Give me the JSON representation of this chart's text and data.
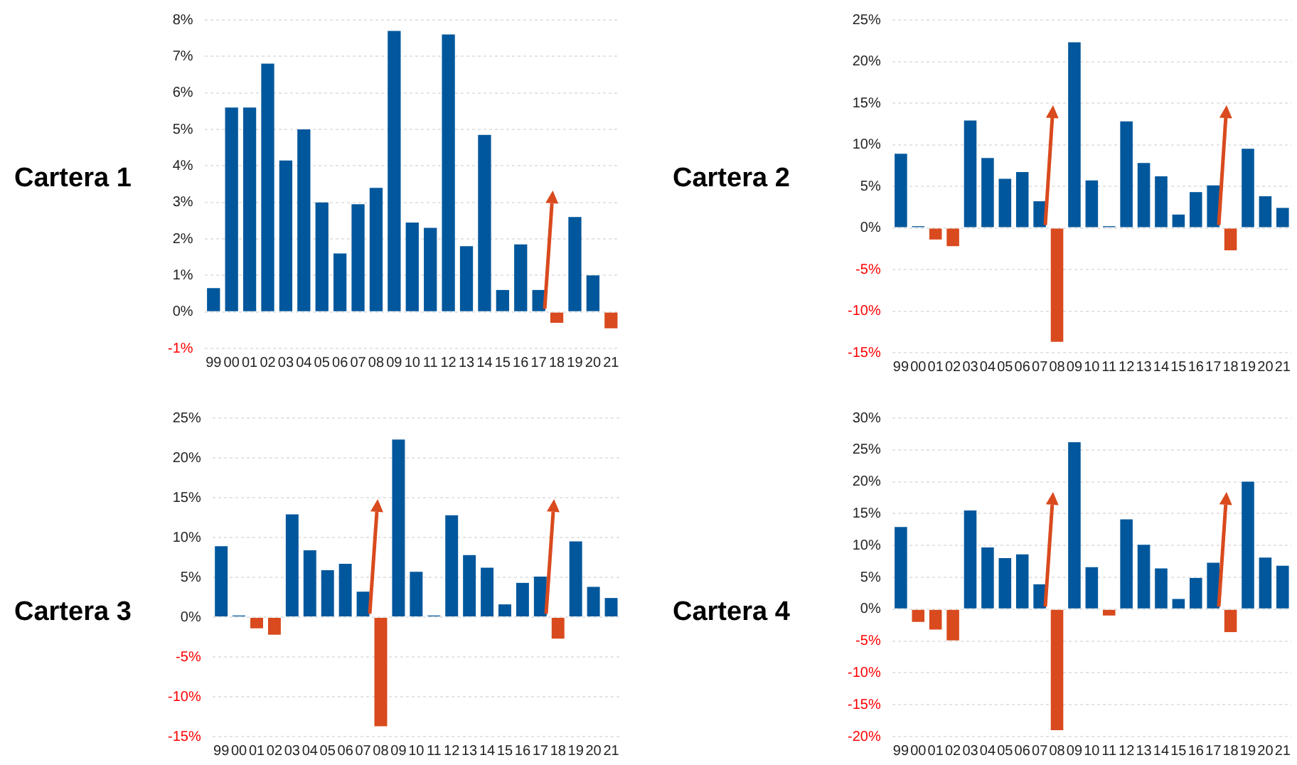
{
  "chart_data": [
    {
      "type": "bar",
      "title": "Cartera 1",
      "categories": [
        "99",
        "00",
        "01",
        "02",
        "03",
        "04",
        "05",
        "06",
        "07",
        "08",
        "09",
        "10",
        "11",
        "12",
        "13",
        "14",
        "15",
        "16",
        "17",
        "18",
        "19",
        "20",
        "21"
      ],
      "values": [
        0.65,
        5.6,
        5.6,
        6.8,
        4.15,
        5.0,
        3.0,
        1.6,
        2.95,
        3.4,
        7.7,
        2.45,
        2.3,
        7.6,
        1.8,
        4.85,
        0.6,
        1.85,
        0.6,
        -0.3,
        2.6,
        1.0,
        -0.45
      ],
      "colors": [
        "#00579c",
        "#00579c",
        "#00579c",
        "#00579c",
        "#00579c",
        "#00579c",
        "#00579c",
        "#00579c",
        "#00579c",
        "#00579c",
        "#00579c",
        "#00579c",
        "#00579c",
        "#00579c",
        "#00579c",
        "#00579c",
        "#00579c",
        "#00579c",
        "#00579c",
        "#d94a1e",
        "#00579c",
        "#00579c",
        "#d94a1e"
      ],
      "ylim": [
        -1,
        8
      ],
      "yticks": [
        {
          "value": -1,
          "label": "-1%"
        },
        {
          "value": 0,
          "label": "0%"
        },
        {
          "value": 1,
          "label": "1%"
        },
        {
          "value": 2,
          "label": "2%"
        },
        {
          "value": 3,
          "label": "3%"
        },
        {
          "value": 4,
          "label": "4%"
        },
        {
          "value": 5,
          "label": "5%"
        },
        {
          "value": 6,
          "label": "6%"
        },
        {
          "value": 7,
          "label": "7%"
        },
        {
          "value": 8,
          "label": "8%"
        }
      ],
      "grid": "y"
    },
    {
      "type": "bar",
      "title": "Cartera 2",
      "categories": [
        "99",
        "00",
        "01",
        "02",
        "03",
        "04",
        "05",
        "06",
        "07",
        "08",
        "09",
        "10",
        "11",
        "12",
        "13",
        "14",
        "15",
        "16",
        "17",
        "18",
        "19",
        "20",
        "21"
      ],
      "values": [
        8.9,
        0.2,
        -1.4,
        -2.2,
        12.9,
        8.4,
        5.9,
        6.7,
        3.2,
        -13.7,
        22.3,
        5.7,
        0.2,
        12.8,
        7.8,
        6.2,
        1.6,
        4.3,
        5.1,
        -2.7,
        9.5,
        3.8,
        2.4
      ],
      "colors": [
        "#00579c",
        "#00579c",
        "#d94a1e",
        "#d94a1e",
        "#00579c",
        "#00579c",
        "#00579c",
        "#00579c",
        "#00579c",
        "#d94a1e",
        "#00579c",
        "#00579c",
        "#00579c",
        "#00579c",
        "#00579c",
        "#00579c",
        "#00579c",
        "#00579c",
        "#00579c",
        "#d94a1e",
        "#00579c",
        "#00579c",
        "#00579c"
      ],
      "ylim": [
        -15,
        25
      ],
      "yticks": [
        {
          "value": -15,
          "label": "-15%"
        },
        {
          "value": -10,
          "label": "-10%"
        },
        {
          "value": -5,
          "label": "-5%"
        },
        {
          "value": 0,
          "label": "0%"
        },
        {
          "value": 5,
          "label": "5%"
        },
        {
          "value": 10,
          "label": "10%"
        },
        {
          "value": 15,
          "label": "15%"
        },
        {
          "value": 20,
          "label": "20%"
        },
        {
          "value": 25,
          "label": "25%"
        }
      ],
      "grid": "y"
    },
    {
      "type": "bar",
      "title": "Cartera 3",
      "categories": [
        "99",
        "00",
        "01",
        "02",
        "03",
        "04",
        "05",
        "06",
        "07",
        "08",
        "09",
        "10",
        "11",
        "12",
        "13",
        "14",
        "15",
        "16",
        "17",
        "18",
        "19",
        "20",
        "21"
      ],
      "values": [
        8.9,
        0.2,
        -1.4,
        -2.2,
        12.9,
        8.4,
        5.9,
        6.7,
        3.2,
        -13.7,
        22.3,
        5.7,
        0.2,
        12.8,
        7.8,
        6.2,
        1.6,
        4.3,
        5.1,
        -2.7,
        9.5,
        3.8,
        2.4
      ],
      "colors": [
        "#00579c",
        "#00579c",
        "#d94a1e",
        "#d94a1e",
        "#00579c",
        "#00579c",
        "#00579c",
        "#00579c",
        "#00579c",
        "#d94a1e",
        "#00579c",
        "#00579c",
        "#00579c",
        "#00579c",
        "#00579c",
        "#00579c",
        "#00579c",
        "#00579c",
        "#00579c",
        "#d94a1e",
        "#00579c",
        "#00579c",
        "#00579c"
      ],
      "ylim": [
        -15,
        25
      ],
      "yticks": [
        {
          "value": -15,
          "label": "-15%"
        },
        {
          "value": -10,
          "label": "-10%"
        },
        {
          "value": -5,
          "label": "-5%"
        },
        {
          "value": 0,
          "label": "0%"
        },
        {
          "value": 5,
          "label": "5%"
        },
        {
          "value": 10,
          "label": "10%"
        },
        {
          "value": 15,
          "label": "15%"
        },
        {
          "value": 20,
          "label": "20%"
        },
        {
          "value": 25,
          "label": "25%"
        }
      ],
      "grid": "y"
    },
    {
      "type": "bar",
      "title": "Cartera 4",
      "categories": [
        "99",
        "00",
        "01",
        "02",
        "03",
        "04",
        "05",
        "06",
        "07",
        "08",
        "09",
        "10",
        "11",
        "12",
        "13",
        "14",
        "15",
        "16",
        "17",
        "18",
        "19",
        "20",
        "21"
      ],
      "values": [
        12.9,
        -2.0,
        -3.2,
        -4.9,
        15.5,
        9.7,
        8.0,
        8.6,
        3.9,
        -19,
        26.2,
        6.6,
        -1.0,
        14.1,
        10.1,
        6.4,
        1.6,
        4.9,
        7.3,
        -3.6,
        20.0,
        8.1,
        6.8
      ],
      "colors": [
        "#00579c",
        "#d94a1e",
        "#d94a1e",
        "#d94a1e",
        "#00579c",
        "#00579c",
        "#00579c",
        "#00579c",
        "#00579c",
        "#d94a1e",
        "#00579c",
        "#00579c",
        "#d94a1e",
        "#00579c",
        "#00579c",
        "#00579c",
        "#00579c",
        "#00579c",
        "#00579c",
        "#d94a1e",
        "#00579c",
        "#00579c",
        "#00579c"
      ],
      "ylim": [
        -20,
        30
      ],
      "yticks": [
        {
          "value": -20,
          "label": "-20%"
        },
        {
          "value": -15,
          "label": "-15%"
        },
        {
          "value": -10,
          "label": "-10%"
        },
        {
          "value": -5,
          "label": "-5%"
        },
        {
          "value": 0,
          "label": "0%"
        },
        {
          "value": 5,
          "label": "5%"
        },
        {
          "value": 10,
          "label": "10%"
        },
        {
          "value": 15,
          "label": "15%"
        },
        {
          "value": 20,
          "label": "20%"
        },
        {
          "value": 25,
          "label": "25%"
        },
        {
          "value": 30,
          "label": "30%"
        }
      ],
      "grid": "y"
    }
  ]
}
